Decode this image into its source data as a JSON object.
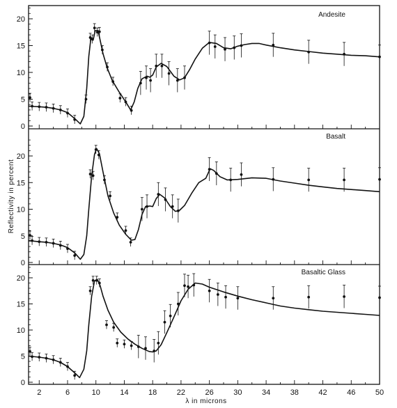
{
  "chart_data": {
    "type": "line",
    "xlabel": "λ in microns",
    "ylabel": "Reflectivity in percent",
    "xlim": [
      0.5,
      50
    ],
    "x_ticks": [
      "2",
      "6",
      "10",
      "14",
      "18",
      "22",
      "26",
      "30",
      "34",
      "38",
      "42",
      "46",
      "50"
    ],
    "line_color": "#111111",
    "grid": false,
    "panels": [
      {
        "title": "Andesite",
        "ylim": [
          0,
          24
        ],
        "y_ticks": [
          "0",
          "5",
          "10",
          "15",
          "20"
        ],
        "curve": [
          [
            0.5,
            3.7
          ],
          [
            2,
            3.6
          ],
          [
            3,
            3.5
          ],
          [
            4,
            3.3
          ],
          [
            5,
            3
          ],
          [
            6,
            2.5
          ],
          [
            7,
            1.4
          ],
          [
            7.8,
            0.4
          ],
          [
            8.3,
            1.8
          ],
          [
            8.7,
            7
          ],
          [
            9,
            13
          ],
          [
            9.3,
            16.5
          ],
          [
            9.6,
            16
          ],
          [
            9.9,
            17.8
          ],
          [
            10.3,
            17.8
          ],
          [
            10.6,
            16
          ],
          [
            11,
            13.5
          ],
          [
            11.6,
            10.8
          ],
          [
            12.3,
            8.5
          ],
          [
            13.2,
            6.5
          ],
          [
            14.2,
            4.5
          ],
          [
            14.9,
            3
          ],
          [
            15.4,
            4.5
          ],
          [
            15.9,
            7
          ],
          [
            16.5,
            8.8
          ],
          [
            17.2,
            9.3
          ],
          [
            17.6,
            9.1
          ],
          [
            18,
            9.5
          ],
          [
            18.5,
            11
          ],
          [
            19.2,
            11.7
          ],
          [
            20,
            11.1
          ],
          [
            21,
            9.3
          ],
          [
            21.8,
            8.6
          ],
          [
            22.5,
            9
          ],
          [
            23.2,
            10.5
          ],
          [
            24,
            12.5
          ],
          [
            25,
            14.5
          ],
          [
            26,
            15.6
          ],
          [
            27,
            15.4
          ],
          [
            28,
            14.6
          ],
          [
            29,
            14.4
          ],
          [
            30,
            14.9
          ],
          [
            31,
            15.2
          ],
          [
            32,
            15.4
          ],
          [
            33,
            15.4
          ],
          [
            34,
            15.1
          ],
          [
            36,
            14.6
          ],
          [
            38,
            14.2
          ],
          [
            40,
            13.9
          ],
          [
            42,
            13.6
          ],
          [
            44,
            13.4
          ],
          [
            46,
            13.2
          ],
          [
            48,
            13.1
          ],
          [
            50,
            12.9
          ]
        ],
        "points": [
          [
            0.7,
            5.3
          ],
          [
            1,
            3.7
          ],
          [
            2,
            3.6
          ],
          [
            3,
            3.5
          ],
          [
            4,
            3.3
          ],
          [
            5,
            3
          ],
          [
            6,
            2.4
          ],
          [
            7,
            1.2
          ],
          [
            8.6,
            5
          ],
          [
            9.2,
            16.5
          ],
          [
            9.5,
            16.2
          ],
          [
            9.8,
            18.3
          ],
          [
            10.2,
            17.5
          ],
          [
            10.5,
            17.6
          ],
          [
            10.9,
            14.2
          ],
          [
            11.6,
            11
          ],
          [
            12.4,
            8.3
          ],
          [
            13.4,
            5.2
          ],
          [
            14.2,
            4.5
          ],
          [
            15,
            2.9
          ],
          [
            16.3,
            8
          ],
          [
            17.1,
            9
          ],
          [
            17.7,
            8.5
          ],
          [
            18.5,
            11.2
          ],
          [
            19.3,
            11.2
          ],
          [
            20.3,
            9.8
          ],
          [
            21.5,
            8.5
          ],
          [
            22.5,
            9
          ],
          [
            26,
            15.5
          ],
          [
            26.8,
            14.8
          ],
          [
            28.2,
            14.3
          ],
          [
            29.5,
            14.6
          ],
          [
            30.5,
            15
          ],
          [
            35,
            15.1
          ],
          [
            40,
            13.8
          ],
          [
            45,
            13.4
          ],
          [
            50,
            12.9
          ]
        ]
      },
      {
        "title": "Basalt",
        "ylim": [
          0,
          24
        ],
        "y_ticks": [
          "0",
          "5",
          "10",
          "15",
          "20"
        ],
        "curve": [
          [
            0.5,
            4.1
          ],
          [
            2,
            3.9
          ],
          [
            3,
            3.8
          ],
          [
            4,
            3.6
          ],
          [
            5,
            3.3
          ],
          [
            6,
            2.8
          ],
          [
            7,
            1.8
          ],
          [
            7.8,
            0.6
          ],
          [
            8.3,
            1.5
          ],
          [
            8.7,
            5
          ],
          [
            9,
            10
          ],
          [
            9.4,
            16.3
          ],
          [
            9.8,
            20.3
          ],
          [
            10.1,
            21.4
          ],
          [
            10.5,
            20.4
          ],
          [
            11,
            17
          ],
          [
            11.7,
            12.5
          ],
          [
            12.5,
            9.3
          ],
          [
            13.3,
            7
          ],
          [
            14.2,
            5.3
          ],
          [
            15,
            4.2
          ],
          [
            15.5,
            4.3
          ],
          [
            16,
            6.2
          ],
          [
            16.5,
            9
          ],
          [
            17,
            10.5
          ],
          [
            17.6,
            10.6
          ],
          [
            18,
            10.5
          ],
          [
            18.5,
            12
          ],
          [
            19,
            12.8
          ],
          [
            19.7,
            12.1
          ],
          [
            20.5,
            10.5
          ],
          [
            21.2,
            9.6
          ],
          [
            21.8,
            9.8
          ],
          [
            22.5,
            10.7
          ],
          [
            23.5,
            13
          ],
          [
            24.5,
            15
          ],
          [
            25.5,
            15.8
          ],
          [
            26.1,
            17.6
          ],
          [
            26.6,
            17.3
          ],
          [
            27.5,
            16.1
          ],
          [
            28.5,
            15.5
          ],
          [
            30,
            15.6
          ],
          [
            32,
            15.9
          ],
          [
            34,
            15.8
          ],
          [
            36,
            15.3
          ],
          [
            38,
            14.9
          ],
          [
            40,
            14.5
          ],
          [
            42,
            14.2
          ],
          [
            44,
            13.9
          ],
          [
            46,
            13.7
          ],
          [
            48,
            13.5
          ],
          [
            50,
            13.3
          ]
        ],
        "points": [
          [
            0.7,
            5.1
          ],
          [
            1,
            4.1
          ],
          [
            2,
            3.9
          ],
          [
            3,
            3.8
          ],
          [
            4,
            3.6
          ],
          [
            5,
            3.2
          ],
          [
            6,
            2.6
          ],
          [
            7,
            1.3
          ],
          [
            9.2,
            16.6
          ],
          [
            9.6,
            16.3
          ],
          [
            10,
            21.2
          ],
          [
            10.4,
            20.2
          ],
          [
            11.2,
            15.5
          ],
          [
            12,
            12.5
          ],
          [
            13,
            8.5
          ],
          [
            14.2,
            6
          ],
          [
            14.9,
            3.8
          ],
          [
            16.5,
            10
          ],
          [
            17.2,
            10.5
          ],
          [
            18.8,
            12.8
          ],
          [
            19.8,
            11.8
          ],
          [
            20.8,
            10.5
          ],
          [
            21.6,
            9.7
          ],
          [
            26,
            17.5
          ],
          [
            27,
            16.7
          ],
          [
            29,
            15.5
          ],
          [
            30.5,
            16.5
          ],
          [
            35,
            15.6
          ],
          [
            40,
            15.5
          ],
          [
            45,
            15.5
          ],
          [
            50,
            15.6
          ]
        ]
      },
      {
        "title": "Basaltic Glass",
        "ylim": [
          0,
          21.5
        ],
        "y_ticks": [
          "0",
          "5",
          "10",
          "15",
          "20"
        ],
        "curve": [
          [
            0.5,
            5
          ],
          [
            2,
            4.8
          ],
          [
            3,
            4.6
          ],
          [
            4,
            4.3
          ],
          [
            5,
            3.8
          ],
          [
            6,
            3
          ],
          [
            7,
            1.8
          ],
          [
            7.7,
            0.9
          ],
          [
            8.3,
            2.5
          ],
          [
            8.7,
            6
          ],
          [
            9,
            11
          ],
          [
            9.4,
            16.5
          ],
          [
            9.8,
            19.4
          ],
          [
            10.2,
            19.7
          ],
          [
            10.6,
            18.5
          ],
          [
            11,
            16.5
          ],
          [
            11.7,
            13.8
          ],
          [
            12.5,
            11.5
          ],
          [
            13.5,
            9.6
          ],
          [
            14.5,
            8.3
          ],
          [
            15.5,
            7.3
          ],
          [
            16.5,
            6.5
          ],
          [
            17.5,
            5.9
          ],
          [
            18,
            5.8
          ],
          [
            18.5,
            6
          ],
          [
            19.2,
            7.2
          ],
          [
            20,
            9.5
          ],
          [
            21,
            12.5
          ],
          [
            22,
            15.6
          ],
          [
            23,
            17.8
          ],
          [
            24,
            19
          ],
          [
            25,
            18.8
          ],
          [
            26,
            18.2
          ],
          [
            28,
            17.3
          ],
          [
            30,
            16.5
          ],
          [
            32,
            15.8
          ],
          [
            34,
            15.2
          ],
          [
            36,
            14.6
          ],
          [
            38,
            14.2
          ],
          [
            40,
            13.9
          ],
          [
            42,
            13.6
          ],
          [
            44,
            13.4
          ],
          [
            46,
            13.2
          ],
          [
            48,
            13
          ],
          [
            50,
            12.8
          ]
        ],
        "points": [
          [
            0.7,
            5.9
          ],
          [
            1,
            4.9
          ],
          [
            2,
            4.8
          ],
          [
            3,
            4.6
          ],
          [
            4,
            4.3
          ],
          [
            5,
            3.8
          ],
          [
            6,
            3
          ],
          [
            7,
            1.3
          ],
          [
            9.2,
            17.5
          ],
          [
            9.6,
            19.5
          ],
          [
            10.1,
            19.5
          ],
          [
            10.5,
            19
          ],
          [
            11.5,
            11
          ],
          [
            12.5,
            10.5
          ],
          [
            13,
            7.5
          ],
          [
            14,
            7.3
          ],
          [
            15,
            7
          ],
          [
            16,
            6.8
          ],
          [
            17,
            6.5
          ],
          [
            18.2,
            6
          ],
          [
            18.8,
            7.5
          ],
          [
            19.7,
            11.5
          ],
          [
            20.5,
            12.7
          ],
          [
            21.6,
            15
          ],
          [
            22.5,
            18.5
          ],
          [
            23,
            18.3
          ],
          [
            23.8,
            18.6
          ],
          [
            26,
            17.5
          ],
          [
            27.2,
            16.8
          ],
          [
            28.3,
            16.3
          ],
          [
            30,
            16.1
          ],
          [
            35,
            16.1
          ],
          [
            40,
            16.3
          ],
          [
            45,
            16.4
          ],
          [
            50,
            16.2
          ]
        ]
      }
    ]
  }
}
